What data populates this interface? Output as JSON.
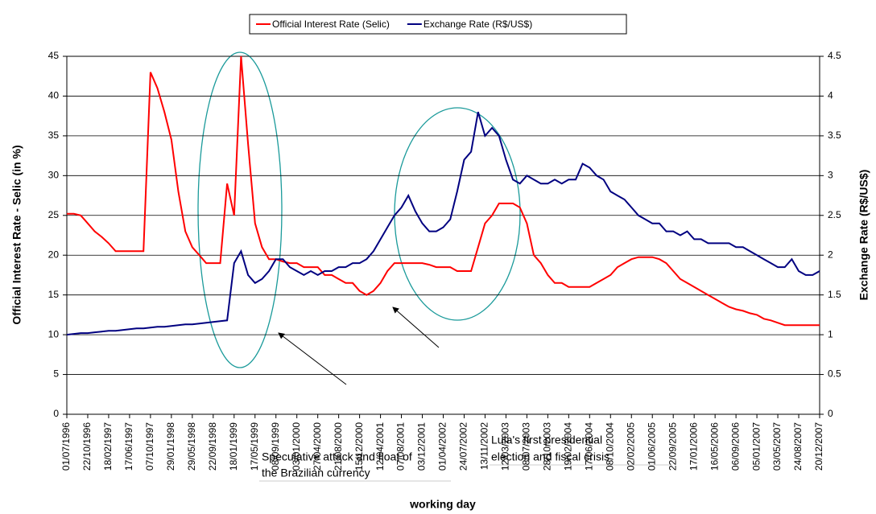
{
  "chart_data": {
    "type": "line",
    "xlabel": "working day",
    "ylabel": "Official Interest Rate - Selic (in %)",
    "y2label": "Exchange Rate (R$/US$)",
    "categories": [
      "01/07/1996",
      null,
      null,
      "22/10/1996",
      null,
      null,
      "18/02/1997",
      null,
      null,
      "17/06/1997",
      null,
      null,
      "07/10/1997",
      null,
      null,
      "29/01/1998",
      null,
      null,
      "29/05/1998",
      null,
      null,
      "22/09/1998",
      null,
      null,
      "18/01/1999",
      null,
      null,
      "17/05/1999",
      null,
      null,
      "08/09/1999",
      null,
      null,
      "03/01/2000",
      null,
      null,
      "27/04/2000",
      null,
      null,
      "21/08/2000",
      null,
      null,
      "15/12/2000",
      null,
      null,
      "12/04/2001",
      null,
      null,
      "07/08/2001",
      null,
      null,
      "03/12/2001",
      null,
      null,
      "01/04/2002",
      null,
      null,
      "24/07/2002",
      null,
      null,
      "13/11/2002",
      null,
      null,
      "12/03/2003",
      null,
      null,
      "08/07/2003",
      null,
      null,
      "28/10/2003",
      null,
      null,
      "19/02/2004",
      null,
      null,
      "17/06/2004",
      null,
      null,
      "08/10/2004",
      null,
      null,
      "02/02/2005",
      null,
      null,
      "01/06/2005",
      null,
      null,
      "22/09/2005",
      null,
      null,
      "17/01/2006",
      null,
      null,
      "16/05/2006",
      null,
      null,
      "06/09/2006",
      null,
      null,
      "05/01/2007",
      null,
      null,
      "03/05/2007",
      null,
      null,
      "24/08/2007",
      null,
      null,
      "20/12/2007"
    ],
    "series": [
      {
        "name": "Official Interest Rate (Selic)",
        "color": "#ff0000",
        "values": [
          25.2,
          25.2,
          25,
          24,
          23,
          22.3,
          21.5,
          20.5,
          20.5,
          20.5,
          20.5,
          20.5,
          43,
          41,
          38,
          34.5,
          28,
          23,
          21,
          20,
          19,
          19,
          19,
          29,
          25,
          45,
          34,
          24,
          21,
          19.5,
          19.5,
          19.2,
          19,
          19,
          18.5,
          18.5,
          18.5,
          17.5,
          17.5,
          17,
          16.5,
          16.5,
          15.5,
          15,
          15.5,
          16.5,
          18,
          19,
          19,
          19,
          19,
          19,
          18.8,
          18.5,
          18.5,
          18.5,
          18,
          18,
          18,
          21,
          24,
          25,
          26.5,
          26.5,
          26.5,
          26,
          24,
          20,
          19,
          17.5,
          16.5,
          16.5,
          16,
          16,
          16,
          16,
          16.5,
          17,
          17.5,
          18.5,
          19,
          19.5,
          19.75,
          19.75,
          19.75,
          19.5,
          19,
          18,
          17,
          16.5,
          16,
          15.5,
          15,
          14.5,
          14,
          13.5,
          13.2,
          13,
          12.7,
          12.5,
          12,
          11.8,
          11.5,
          11.2,
          11.2,
          11.2,
          11.2,
          11.2,
          11.2
        ]
      },
      {
        "name": "Exchange Rate (R$/US$)",
        "color": "#000080",
        "axis": "y2",
        "values": [
          1.0,
          1.01,
          1.02,
          1.02,
          1.03,
          1.04,
          1.05,
          1.05,
          1.06,
          1.07,
          1.08,
          1.08,
          1.09,
          1.1,
          1.1,
          1.11,
          1.12,
          1.13,
          1.13,
          1.14,
          1.15,
          1.16,
          1.17,
          1.18,
          1.9,
          2.05,
          1.75,
          1.65,
          1.7,
          1.8,
          1.95,
          1.95,
          1.85,
          1.8,
          1.75,
          1.8,
          1.75,
          1.8,
          1.8,
          1.85,
          1.85,
          1.9,
          1.9,
          1.95,
          2.05,
          2.2,
          2.35,
          2.5,
          2.6,
          2.75,
          2.55,
          2.4,
          2.3,
          2.3,
          2.35,
          2.45,
          2.8,
          3.2,
          3.3,
          3.8,
          3.5,
          3.6,
          3.5,
          3.2,
          2.95,
          2.9,
          3.0,
          2.95,
          2.9,
          2.9,
          2.95,
          2.9,
          2.95,
          2.95,
          3.15,
          3.1,
          3.0,
          2.95,
          2.8,
          2.75,
          2.7,
          2.6,
          2.5,
          2.45,
          2.4,
          2.4,
          2.3,
          2.3,
          2.25,
          2.3,
          2.2,
          2.2,
          2.15,
          2.15,
          2.15,
          2.15,
          2.1,
          2.1,
          2.05,
          2.0,
          1.95,
          1.9,
          1.85,
          1.85,
          1.95,
          1.8,
          1.75,
          1.75,
          1.8
        ]
      }
    ],
    "ylim": [
      0,
      45
    ],
    "yticks": [
      0,
      5,
      10,
      15,
      20,
      25,
      30,
      35,
      40,
      45
    ],
    "y2lim": [
      0,
      4.5
    ],
    "y2ticks": [
      0,
      0.5,
      1,
      1.5,
      2,
      2.5,
      3,
      3.5,
      4,
      4.5
    ],
    "grid": true,
    "legend": "top",
    "annotations": [
      {
        "text": [
          "Speculative attack and float of",
          "the Brazilian currency"
        ]
      },
      {
        "text": [
          "Lula's first presidential",
          "election and fiscal crisis"
        ]
      }
    ]
  }
}
